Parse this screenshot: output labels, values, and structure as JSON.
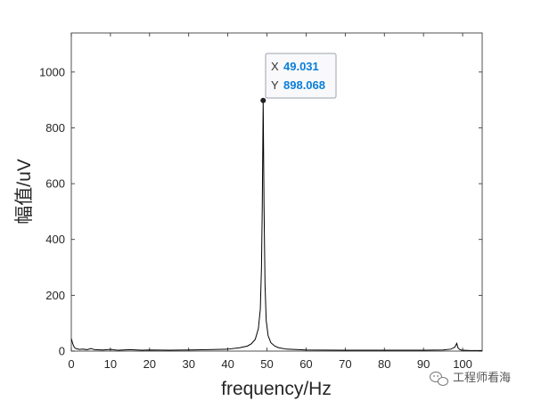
{
  "chart_data": {
    "type": "line",
    "title": "",
    "xlabel": "frequency/Hz",
    "ylabel": "幅值/uV",
    "xlim": [
      0,
      105
    ],
    "ylim": [
      0,
      1140
    ],
    "xticks": [
      0,
      10,
      20,
      30,
      40,
      50,
      60,
      70,
      80,
      90,
      100
    ],
    "yticks": [
      0,
      200,
      400,
      600,
      800,
      1000
    ],
    "grid": false,
    "series": [
      {
        "color": "#000000",
        "x": [
          0,
          0.3,
          0.6,
          1,
          1.5,
          2,
          3,
          4,
          5,
          6,
          8,
          10,
          12,
          15,
          18,
          20,
          25,
          30,
          35,
          40,
          43,
          45,
          46,
          47,
          47.8,
          48.3,
          48.6,
          48.8,
          48.95,
          49.031,
          49.1,
          49.25,
          49.5,
          49.8,
          50.3,
          51,
          52,
          53,
          55,
          60,
          70,
          80,
          90,
          95,
          97,
          98,
          98.5,
          98.8,
          99.2,
          99.6,
          100,
          102,
          105
        ],
        "y": [
          45,
          30,
          18,
          10,
          8,
          6,
          7,
          5,
          9,
          5,
          4,
          6,
          3,
          5,
          3,
          4,
          3,
          4,
          5,
          7,
          12,
          18,
          26,
          42,
          80,
          150,
          300,
          520,
          760,
          898.068,
          780,
          520,
          240,
          110,
          55,
          30,
          18,
          12,
          7,
          4,
          3,
          3,
          3,
          4,
          7,
          14,
          28,
          12,
          6,
          4,
          3,
          2,
          2
        ]
      }
    ],
    "datatip": {
      "x_key": "X",
      "x_value": "49.031",
      "y_key": "Y",
      "y_value": "898.068",
      "x": 49.031,
      "y": 898.068
    }
  },
  "watermark": {
    "icon": "wechat-icon",
    "text": "工程师看海"
  }
}
